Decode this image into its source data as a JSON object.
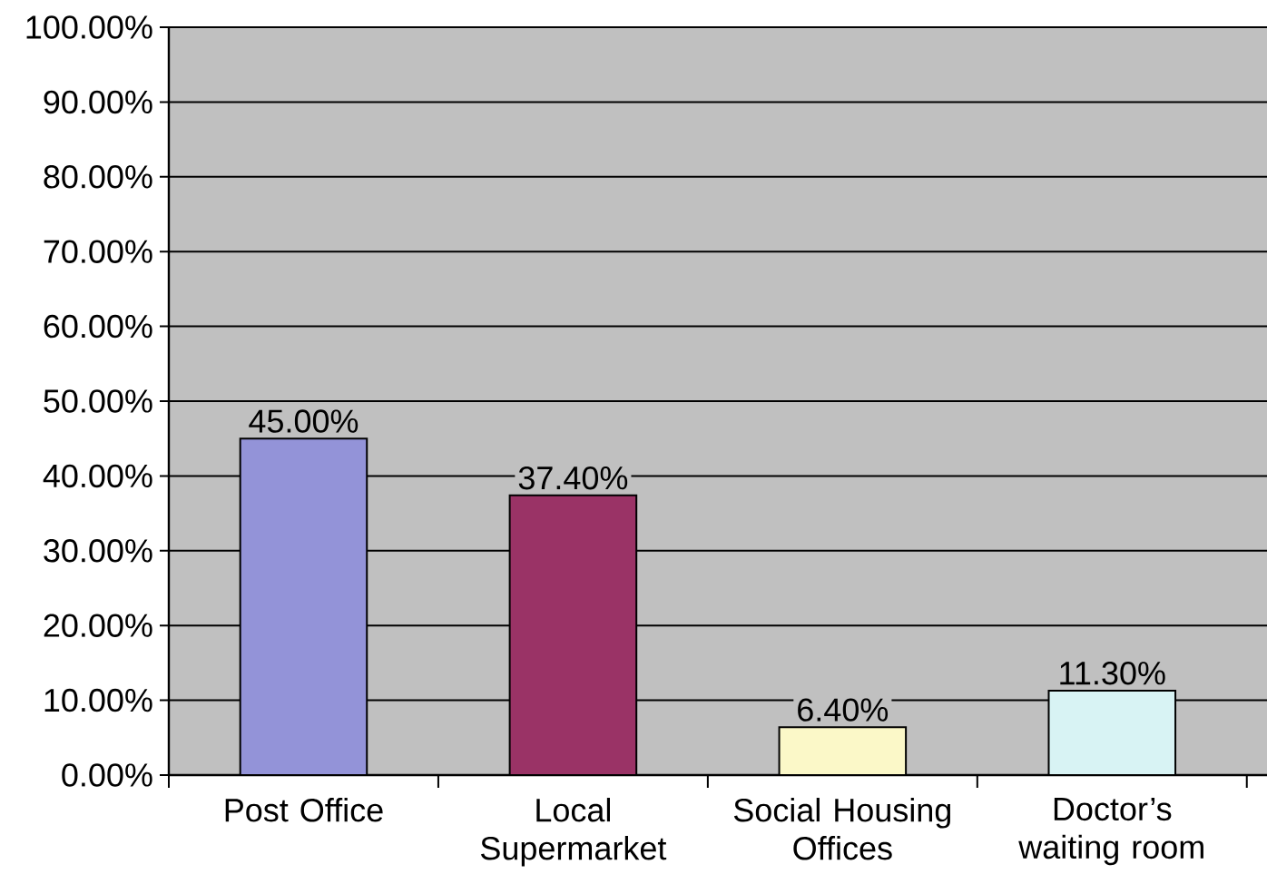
{
  "chart_data": {
    "type": "bar",
    "categories": [
      "Post Office",
      "Local Supermarket",
      "Social Housing Offices",
      "Doctor’s waiting room"
    ],
    "values": [
      45,
      37.4,
      6.4,
      11.3
    ],
    "colors": [
      "#9393d8",
      "#9a3366",
      "#fbf8c8",
      "#d8f3f4"
    ],
    "value_labels": [
      "45.00%",
      "37.40%",
      "6.40%",
      "11.30%"
    ],
    "ylim": [
      0,
      100
    ],
    "yticks": [
      {
        "value": 0,
        "label": "0.00%"
      },
      {
        "value": 10,
        "label": "10.00%"
      },
      {
        "value": 20,
        "label": "20.00%"
      },
      {
        "value": 30,
        "label": "30.00%"
      },
      {
        "value": 40,
        "label": "40.00%"
      },
      {
        "value": 50,
        "label": "50.00%"
      },
      {
        "value": 60,
        "label": "60.00%"
      },
      {
        "value": 70,
        "label": "70.00%"
      },
      {
        "value": 80,
        "label": "80.00%"
      },
      {
        "value": 90,
        "label": "90.00%"
      },
      {
        "value": 100,
        "label": "100.00%"
      }
    ],
    "grid": "y"
  }
}
